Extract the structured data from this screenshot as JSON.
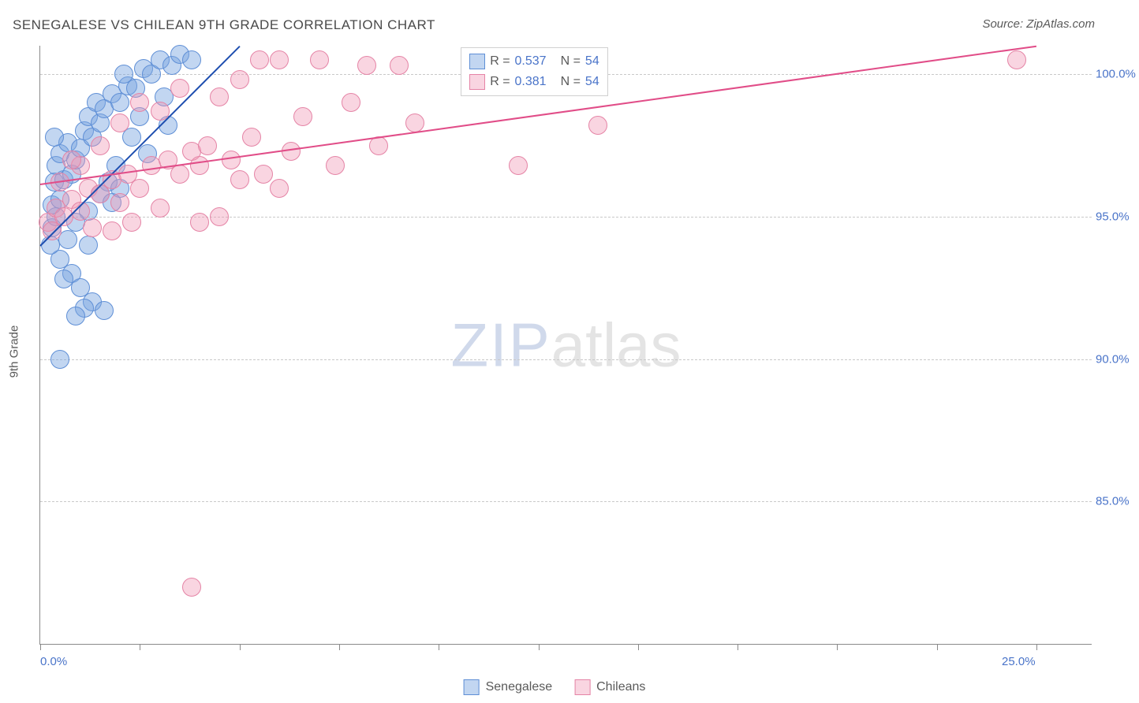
{
  "title": "SENEGALESE VS CHILEAN 9TH GRADE CORRELATION CHART",
  "source": "Source: ZipAtlas.com",
  "ylabel": "9th Grade",
  "watermark": {
    "bold": "ZIP",
    "light": "atlas"
  },
  "chart": {
    "type": "scatter",
    "background_color": "#ffffff",
    "grid_color": "#c9c9c9",
    "axis_color": "#8a8a8a",
    "label_color": "#4a74c9",
    "text_color": "#5a5a5a",
    "xlim": [
      0,
      25
    ],
    "ylim": [
      80,
      101
    ],
    "ytick_step": 5,
    "xtick_step": 2.5,
    "yticks": [
      85,
      90,
      95,
      100
    ],
    "xlabels": [
      {
        "v": 0,
        "t": "0.0%"
      },
      {
        "v": 25,
        "t": "25.0%"
      }
    ],
    "marker_radius": 11,
    "marker_stroke_width": 1.2,
    "trend_width": 2.5,
    "series": [
      {
        "name": "Senegalese",
        "fill": "rgba(120,165,225,0.45)",
        "stroke": "#5f8fd6",
        "line_color": "#1f4fb0",
        "trend": {
          "x1": 0,
          "y1": 94.0,
          "x2": 5.0,
          "y2": 101.0
        },
        "R": "0.537",
        "N": "54",
        "points": [
          [
            0.3,
            94.6
          ],
          [
            0.4,
            95.0
          ],
          [
            0.3,
            95.4
          ],
          [
            0.5,
            95.6
          ],
          [
            0.35,
            96.2
          ],
          [
            0.6,
            96.3
          ],
          [
            0.4,
            96.8
          ],
          [
            0.8,
            96.5
          ],
          [
            0.5,
            97.2
          ],
          [
            0.9,
            97.0
          ],
          [
            0.7,
            97.6
          ],
          [
            1.0,
            97.4
          ],
          [
            1.1,
            98.0
          ],
          [
            1.3,
            97.8
          ],
          [
            1.2,
            98.5
          ],
          [
            1.5,
            98.3
          ],
          [
            1.4,
            99.0
          ],
          [
            1.6,
            98.8
          ],
          [
            1.8,
            99.3
          ],
          [
            2.0,
            99.0
          ],
          [
            2.2,
            99.6
          ],
          [
            2.1,
            100.0
          ],
          [
            2.4,
            99.5
          ],
          [
            2.6,
            100.2
          ],
          [
            2.8,
            100.0
          ],
          [
            3.0,
            100.5
          ],
          [
            3.3,
            100.3
          ],
          [
            3.5,
            100.7
          ],
          [
            3.8,
            100.5
          ],
          [
            3.1,
            99.2
          ],
          [
            2.5,
            98.5
          ],
          [
            2.3,
            97.8
          ],
          [
            1.9,
            96.8
          ],
          [
            1.7,
            96.2
          ],
          [
            1.5,
            95.8
          ],
          [
            1.2,
            95.2
          ],
          [
            0.9,
            94.8
          ],
          [
            0.7,
            94.2
          ],
          [
            0.5,
            93.5
          ],
          [
            0.8,
            93.0
          ],
          [
            1.0,
            92.5
          ],
          [
            1.3,
            92.0
          ],
          [
            1.1,
            91.8
          ],
          [
            0.6,
            92.8
          ],
          [
            1.6,
            91.7
          ],
          [
            0.5,
            90.0
          ],
          [
            0.9,
            91.5
          ],
          [
            1.2,
            94.0
          ],
          [
            2.0,
            96.0
          ],
          [
            2.7,
            97.2
          ],
          [
            3.2,
            98.2
          ],
          [
            1.8,
            95.5
          ],
          [
            0.35,
            97.8
          ],
          [
            0.25,
            94.0
          ]
        ]
      },
      {
        "name": "Chileans",
        "fill": "rgba(240,150,180,0.40)",
        "stroke": "#e584a6",
        "line_color": "#e14d88",
        "trend": {
          "x1": 0,
          "y1": 96.15,
          "x2": 25.0,
          "y2": 101.0
        },
        "R": "0.381",
        "N": "54",
        "points": [
          [
            0.2,
            94.8
          ],
          [
            0.4,
            95.3
          ],
          [
            0.6,
            95.0
          ],
          [
            0.8,
            95.6
          ],
          [
            1.0,
            95.2
          ],
          [
            1.2,
            96.0
          ],
          [
            1.5,
            95.8
          ],
          [
            1.8,
            96.3
          ],
          [
            2.0,
            95.5
          ],
          [
            2.2,
            96.5
          ],
          [
            2.5,
            96.0
          ],
          [
            2.8,
            96.8
          ],
          [
            3.0,
            95.3
          ],
          [
            3.2,
            97.0
          ],
          [
            3.5,
            96.5
          ],
          [
            3.8,
            97.3
          ],
          [
            4.0,
            96.8
          ],
          [
            4.2,
            97.5
          ],
          [
            4.5,
            95.0
          ],
          [
            4.8,
            97.0
          ],
          [
            5.0,
            96.3
          ],
          [
            5.3,
            97.8
          ],
          [
            5.6,
            96.5
          ],
          [
            6.0,
            100.5
          ],
          [
            6.3,
            97.3
          ],
          [
            6.6,
            98.5
          ],
          [
            7.0,
            100.5
          ],
          [
            7.4,
            96.8
          ],
          [
            7.8,
            99.0
          ],
          [
            8.2,
            100.3
          ],
          [
            8.5,
            97.5
          ],
          [
            5.5,
            100.5
          ],
          [
            9.0,
            100.3
          ],
          [
            9.4,
            98.3
          ],
          [
            5.0,
            99.8
          ],
          [
            4.5,
            99.2
          ],
          [
            4.0,
            94.8
          ],
          [
            3.5,
            99.5
          ],
          [
            3.0,
            98.7
          ],
          [
            2.5,
            99.0
          ],
          [
            2.0,
            98.3
          ],
          [
            1.5,
            97.5
          ],
          [
            1.0,
            96.8
          ],
          [
            0.5,
            96.2
          ],
          [
            3.8,
            82.0
          ],
          [
            12.0,
            96.8
          ],
          [
            14.0,
            98.2
          ],
          [
            24.5,
            100.5
          ],
          [
            1.8,
            94.5
          ],
          [
            0.3,
            94.5
          ],
          [
            2.3,
            94.8
          ],
          [
            6.0,
            96.0
          ],
          [
            1.3,
            94.6
          ],
          [
            0.8,
            97.0
          ]
        ]
      }
    ]
  },
  "legend_top": {
    "R_label": "R =",
    "N_label": "N ="
  },
  "bottom_legend": [
    "Senegalese",
    "Chileans"
  ]
}
